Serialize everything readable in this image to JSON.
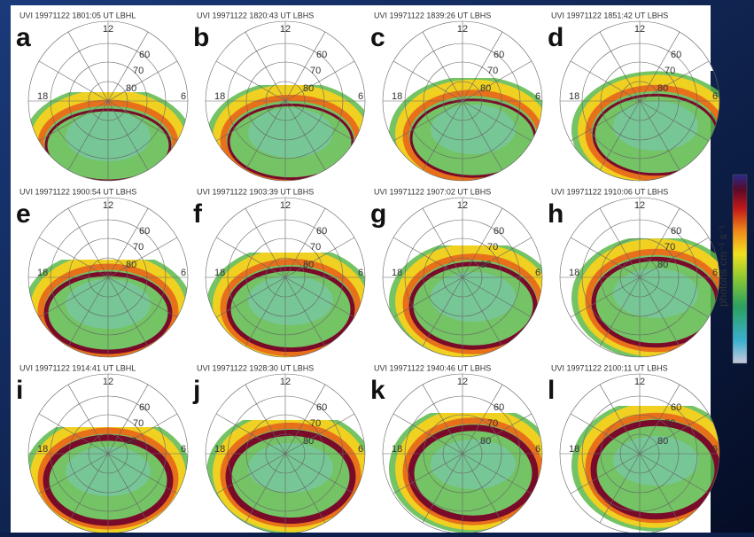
{
  "panels": [
    {
      "letter": "a",
      "header": "UVI 19971122 1801:05 UT LBHL"
    },
    {
      "letter": "b",
      "header": "UVI 19971122 1820:43 UT LBHS"
    },
    {
      "letter": "c",
      "header": "UVI 19971122 1839:26 UT LBHS"
    },
    {
      "letter": "d",
      "header": "UVI 19971122 1851:42 UT LBHS"
    },
    {
      "letter": "e",
      "header": "UVI 19971122 1900:54 UT LBHS"
    },
    {
      "letter": "f",
      "header": "UVI 19971122 1903:39 UT LBHS"
    },
    {
      "letter": "g",
      "header": "UVI 19971122 1907:02 UT LBHS"
    },
    {
      "letter": "h",
      "header": "UVI 19971122 1910:06 UT LBHS"
    },
    {
      "letter": "i",
      "header": "UVI 19971122 1914:41 UT LBHL"
    },
    {
      "letter": "j",
      "header": "UVI 19971122 1928:30 UT LBHS"
    },
    {
      "letter": "k",
      "header": "UVI 19971122 1940:46 UT LBHS"
    },
    {
      "letter": "l",
      "header": "UVI 19971122 2100:11 UT LBHS"
    }
  ],
  "grid_labels": {
    "noon": "12",
    "dusk": "18",
    "dawn": "6",
    "lat60": "60",
    "lat70": "70",
    "lat80": "80"
  },
  "colorbar_label": "photons cm⁻² s⁻¹"
}
